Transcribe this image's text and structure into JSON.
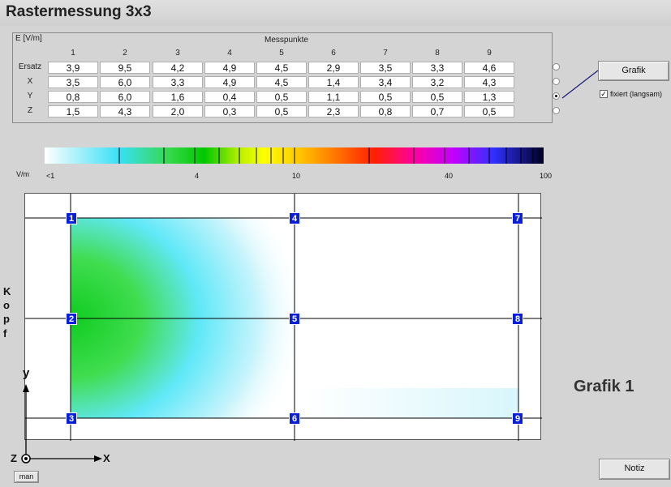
{
  "title": "Rastermessung 3x3",
  "table": {
    "unit_label": "E [V/m]",
    "group_label": "Messpunkte",
    "columns": [
      "1",
      "2",
      "3",
      "4",
      "5",
      "6",
      "7",
      "8",
      "9"
    ],
    "rows": [
      {
        "label": "Ersatz",
        "values": [
          "3,9",
          "9,5",
          "4,2",
          "4,9",
          "4,5",
          "2,9",
          "3,5",
          "3,3",
          "4,6"
        ],
        "selected": false
      },
      {
        "label": "X",
        "values": [
          "3,5",
          "6,0",
          "3,3",
          "4,9",
          "4,5",
          "1,4",
          "3,4",
          "3,2",
          "4,3"
        ],
        "selected": false
      },
      {
        "label": "Y",
        "values": [
          "0,8",
          "6,0",
          "1,6",
          "0,4",
          "0,5",
          "1,1",
          "0,5",
          "0,5",
          "1,3"
        ],
        "selected": true
      },
      {
        "label": "Z",
        "values": [
          "1,5",
          "4,3",
          "2,0",
          "0,3",
          "0,5",
          "2,3",
          "0,8",
          "0,7",
          "0,5"
        ],
        "selected": false
      }
    ]
  },
  "grafik_button": "Grafik",
  "fixiert_label": "fixiert (langsam)",
  "fixiert_checked": true,
  "scale": {
    "unit": "V/m",
    "labels": [
      "<1",
      "4",
      "10",
      "40",
      "100"
    ]
  },
  "markers": [
    "1",
    "2",
    "3",
    "4",
    "5",
    "6",
    "7",
    "8",
    "9"
  ],
  "kopf_letters": [
    "K",
    "o",
    "p",
    "f"
  ],
  "axis_y": "y",
  "axis_x": "X",
  "axis_z": "Z",
  "man_button": "man",
  "grafik_label": "Grafik 1",
  "notiz_button": "Notiz",
  "colors": {
    "marker": "#0a1fd8",
    "background": "#d4d4d4"
  }
}
